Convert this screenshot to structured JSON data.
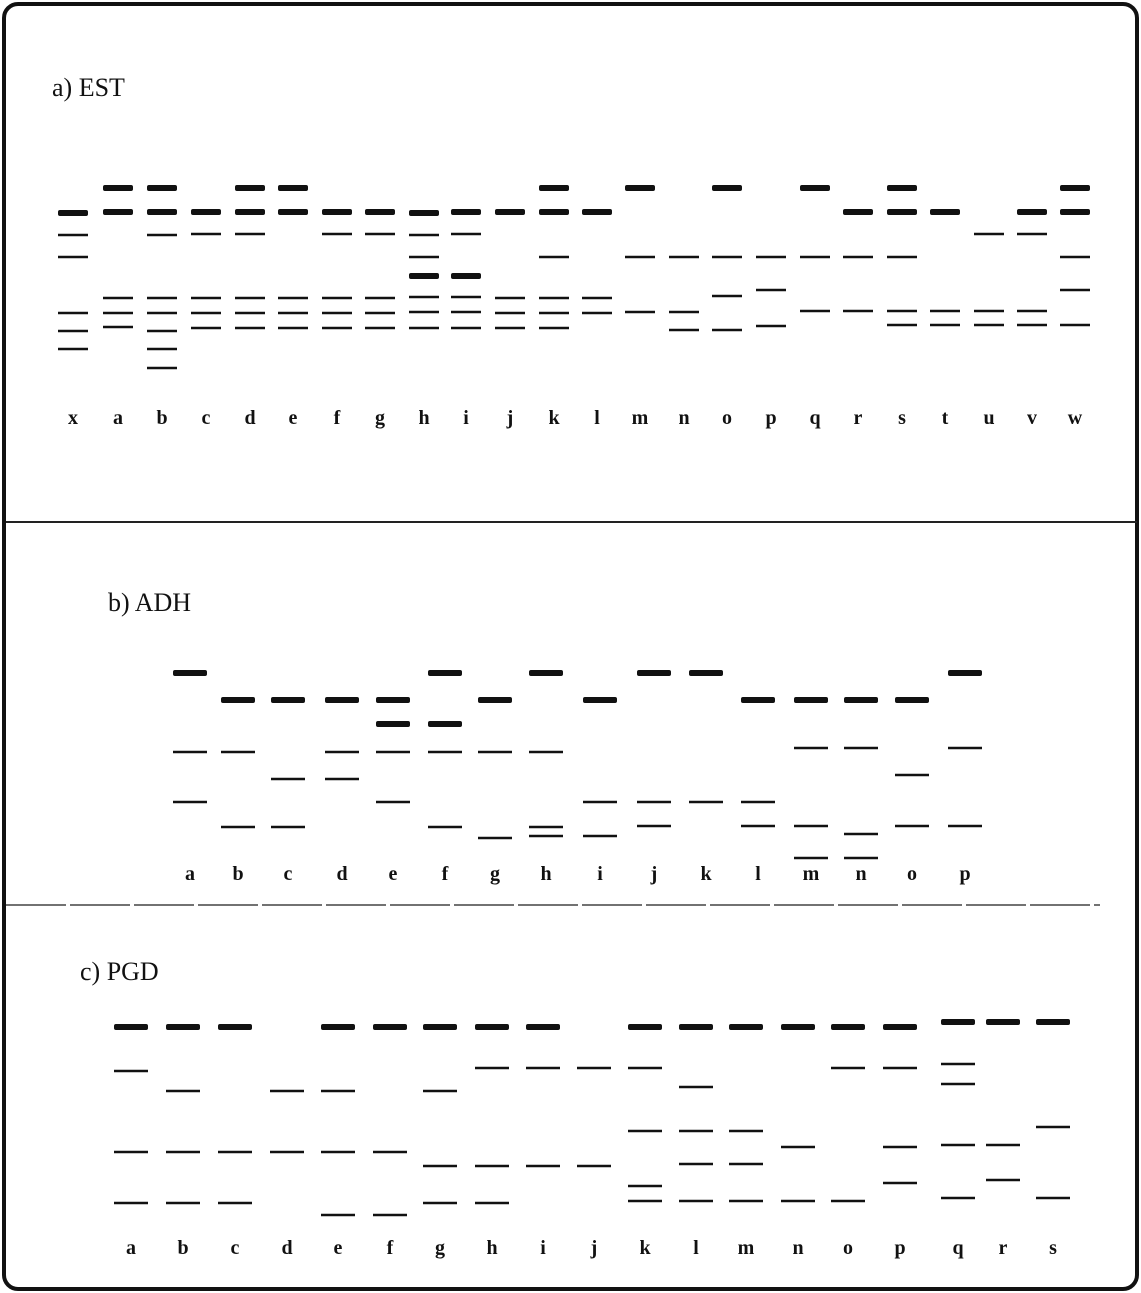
{
  "panels": [
    {
      "title": "a) EST",
      "lanes": [
        "x",
        "a",
        "b",
        "c",
        "d",
        "e",
        "f",
        "g",
        "h",
        "i",
        "j",
        "k",
        "l",
        "m",
        "n",
        "o",
        "p",
        "q",
        "r",
        "s",
        "t",
        "u",
        "v",
        "w"
      ]
    },
    {
      "title": "b) ADH",
      "lanes": [
        "a",
        "b",
        "c",
        "d",
        "e",
        "f",
        "g",
        "h",
        "i",
        "j",
        "k",
        "l",
        "m",
        "n",
        "o",
        "p"
      ]
    },
    {
      "title": "c) PGD",
      "lanes": [
        "a",
        "b",
        "c",
        "d",
        "e",
        "f",
        "g",
        "h",
        "i",
        "j",
        "k",
        "l",
        "m",
        "n",
        "o",
        "p",
        "q",
        "r",
        "s"
      ]
    }
  ]
}
